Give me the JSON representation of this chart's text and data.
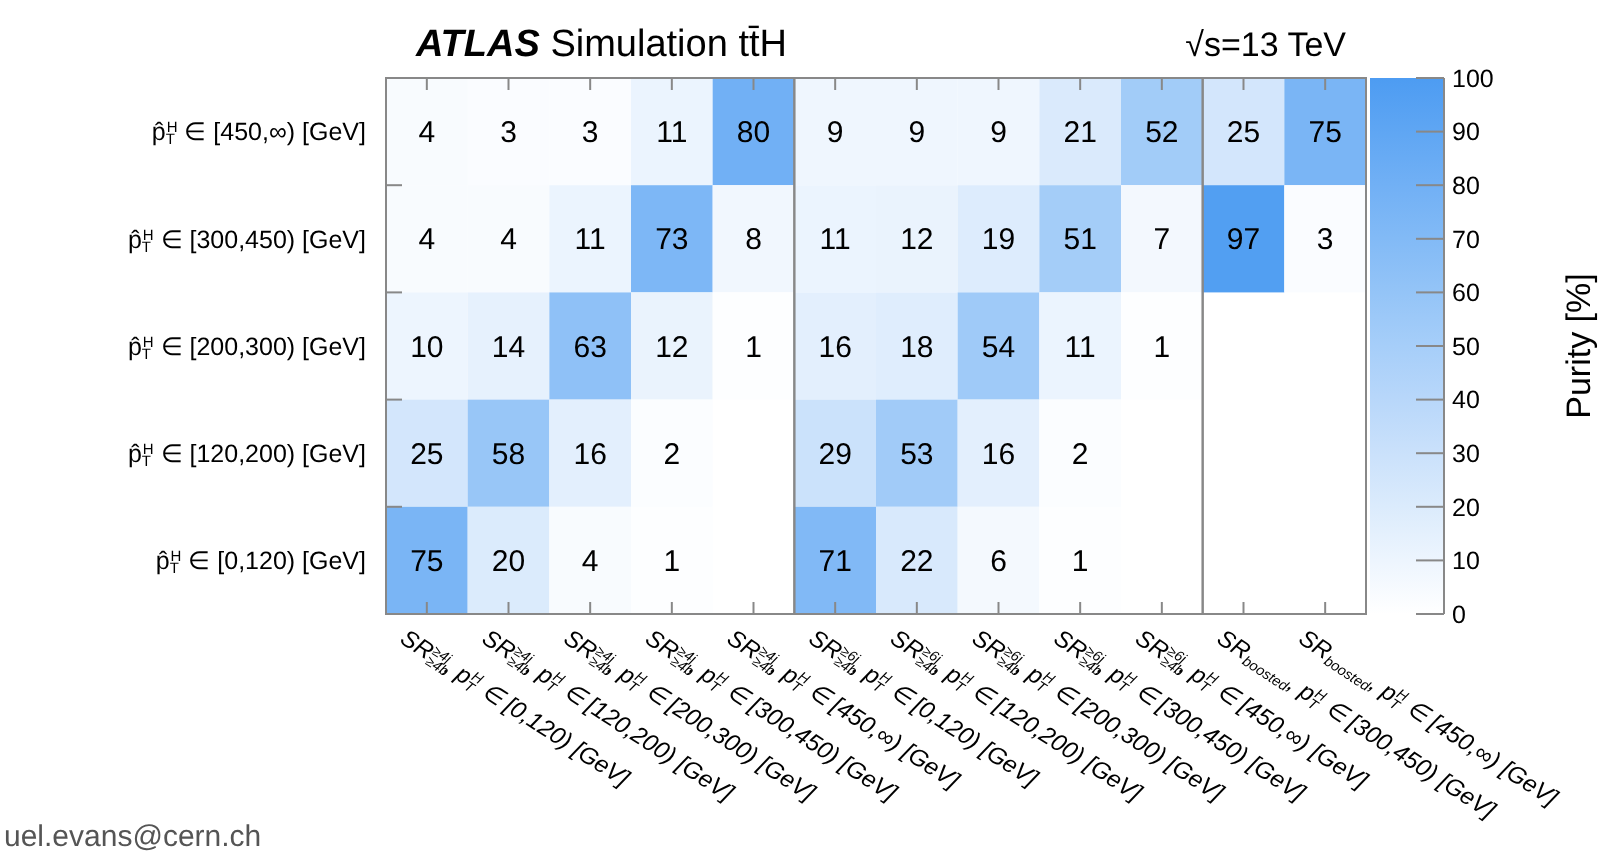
{
  "chart_data": {
    "type": "heatmap",
    "title": "ATLAS Simulation tt̄H",
    "subtitle": "√s=13 TeV",
    "clabel": "Purity [%]",
    "categories": [
      "SR$_{≥4b}$$^{≥4j}$, p$_{T}$$^{H}$ ∈ [0,120) [GeV]",
      "SR$_{≥4b}$$^{≥4j}$, p$_{T}$$^{H}$ ∈ [120,200) [GeV]",
      "SR$_{≥4b}$$^{≥4j}$, p$_{T}$$^{H}$ ∈ [200,300) [GeV]",
      "SR$_{≥4b}$$^{≥4j}$, p$_{T}$$^{H}$ ∈ [300,450) [GeV]",
      "SR$_{≥4b}$$^{≥4j}$, p$_{T}$$^{H}$ ∈ [450,∞) [GeV]",
      "SR$_{≥4b}$$^{≥6j}$, p$_{T}$$^{H}$ ∈ [0,120) [GeV]",
      "SR$_{≥4b}$$^{≥6j}$, p$_{T}$$^{H}$ ∈ [120,200) [GeV]",
      "SR$_{≥4b}$$^{≥6j}$, p$_{T}$$^{H}$ ∈ [200,300) [GeV]",
      "SR$_{≥4b}$$^{≥6j}$, p$_{T}$$^{H}$ ∈ [300,450) [GeV]",
      "SR$_{≥4b}$$^{≥6j}$, p$_{T}$$^{H}$ ∈ [450,∞) [GeV]",
      "SR$_{boosted}$, p$_{T}$$^{H}$ ∈ [300,450) [GeV]",
      "SR$_{boosted}$, p$_{T}$$^{H}$ ∈ [450,∞) [GeV]"
    ],
    "y_categories": [
      "p̂$_{T}$$^{H}$ ∈ [450,∞) [GeV]",
      "p̂$_{T}$$^{H}$ ∈ [300,450) [GeV]",
      "p̂$_{T}$$^{H}$ ∈ [200,300) [GeV]",
      "p̂$_{T}$$^{H}$ ∈ [120,200) [GeV]",
      "p̂$_{T}$$^{H}$ ∈ [0,120) [GeV]"
    ],
    "cells": [
      [
        4,
        3,
        3,
        11,
        80,
        9,
        9,
        9,
        21,
        52,
        25,
        75
      ],
      [
        4,
        4,
        11,
        73,
        8,
        11,
        12,
        19,
        51,
        7,
        97,
        3
      ],
      [
        10,
        14,
        63,
        12,
        1,
        16,
        18,
        54,
        11,
        1,
        null,
        null
      ],
      [
        25,
        58,
        16,
        2,
        null,
        29,
        53,
        16,
        2,
        null,
        null,
        null
      ],
      [
        75,
        20,
        4,
        1,
        null,
        71,
        22,
        6,
        1,
        null,
        null,
        null
      ]
    ],
    "data_labels": true,
    "clim": [
      0,
      100
    ],
    "cticks": [
      0,
      10,
      20,
      30,
      40,
      50,
      60,
      70,
      80,
      90,
      100
    ],
    "annotations": [
      "uel.evans@cern.ch"
    ]
  }
}
